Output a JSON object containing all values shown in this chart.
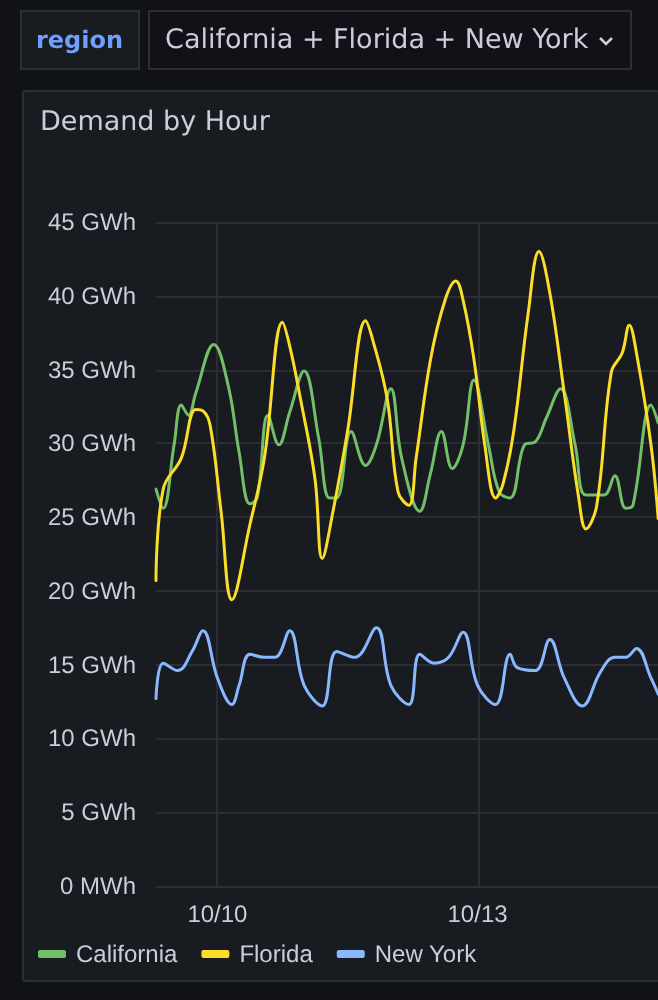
{
  "chart_data": {
    "type": "line",
    "title": "Demand by Hour",
    "annotations": [
      "region",
      "California + Florida + New York"
    ],
    "xlim": [
      "--10-09T07:00",
      "--10-15T02:30"
    ],
    "xticks": [
      {
        "value": "--10-10",
        "label": "10/10"
      },
      {
        "value": "--10-13",
        "label": "10/13"
      }
    ],
    "ylim": [
      0,
      45
    ],
    "yticks": [
      {
        "value": 0,
        "label": "0 MWh"
      },
      {
        "value": 5,
        "label": "5 GWh"
      },
      {
        "value": 10,
        "label": "10 GWh"
      },
      {
        "value": 15,
        "label": "15 GWh"
      },
      {
        "value": 20,
        "label": "20 GWh"
      },
      {
        "value": 25,
        "label": "25 GWh"
      },
      {
        "value": 30,
        "label": "30 GWh"
      },
      {
        "value": 35,
        "label": "35 GWh"
      },
      {
        "value": 40,
        "label": "40 GWh"
      },
      {
        "value": 45,
        "label": "45 GWh"
      }
    ],
    "grid": true,
    "legend": "bottom left",
    "marker": "none",
    "line_style": "solid",
    "series": [
      {
        "name": "California",
        "color": "#73bf69",
        "x": [
          "--10-09T07:00",
          "--10-09T09:00",
          "--10-09T12:00",
          "--10-09T14:00",
          "--10-09T16:00",
          "--10-09T18:00",
          "--10-09T23:00",
          "--10-10T03:00",
          "--10-10T06:00",
          "--10-10T09:00",
          "--10-10T11:00",
          "--10-10T14:00",
          "--10-10T17:00",
          "--10-10T20:00",
          "--10-11T00:00",
          "--10-11T04:00",
          "--10-11T07:00",
          "--10-11T09:00",
          "--10-11T13:00",
          "--10-11T17:00",
          "--10-11T20:00",
          "--10-12T00:00",
          "--10-12T03:00",
          "--10-12T08:00",
          "--10-12T11:00",
          "--10-12T14:00",
          "--10-12T17:00",
          "--10-12T20:00",
          "--10-12T23:00",
          "--10-13T03:00",
          "--10-13T06:00",
          "--10-13T09:00",
          "--10-13T13:00",
          "--10-13T16:00",
          "--10-13T19:00",
          "--10-13T23:00",
          "--10-14T03:00",
          "--10-14T06:00",
          "--10-14T11:00",
          "--10-14T14:00",
          "--10-14T17:00",
          "--10-14T19:00",
          "--10-15T00:00",
          "--10-15T02:00"
        ],
        "values": [
          26.9,
          25.6,
          29.9,
          32.6,
          31.9,
          33.4,
          36.7,
          33.9,
          29.4,
          25.9,
          26.3,
          31.9,
          29.9,
          32.1,
          34.9,
          30.4,
          26.3,
          26.3,
          30.8,
          28.5,
          29.9,
          33.7,
          29.0,
          25.4,
          28.0,
          30.8,
          28.3,
          29.9,
          34.3,
          29.9,
          26.7,
          26.3,
          29.9,
          30.1,
          31.7,
          33.7,
          29.9,
          26.5,
          26.5,
          27.8,
          25.6,
          25.8,
          32.6,
          31.4
        ]
      },
      {
        "name": "Florida",
        "color": "#fade2a",
        "x": [
          "--10-09T07:00",
          "--10-09T09:00",
          "--10-09T14:00",
          "--10-09T18:00",
          "--10-09T20:00",
          "--10-09T22:00",
          "--10-10T01:00",
          "--10-10T04:00",
          "--10-10T09:00",
          "--10-10T13:00",
          "--10-10T18:00",
          "--10-10T20:00",
          "--10-10T23:00",
          "--10-11T03:00",
          "--10-11T05:00",
          "--10-11T08:00",
          "--10-11T12:00",
          "--10-11T17:00",
          "--10-11T19:00",
          "--10-11T23:00",
          "--10-12T02:00",
          "--10-12T05:00",
          "--10-12T07:00",
          "--10-12T11:00",
          "--10-12T15:00",
          "--10-12T18:00",
          "--10-12T20:00",
          "--10-12T23:00",
          "--10-13T02:00",
          "--10-13T05:00",
          "--10-13T07:00",
          "--10-13T10:00",
          "--10-13T14:00",
          "--10-13T17:00",
          "--10-13T20:00",
          "--10-14T00:00",
          "--10-14T04:00",
          "--10-14T06:00",
          "--10-14T09:00",
          "--10-14T13:00",
          "--10-14T16:00",
          "--10-14T18:00",
          "--10-14T20:00",
          "--10-15T00:00",
          "--10-15T02:00"
        ],
        "values": [
          20.7,
          26.9,
          29.0,
          32.3,
          32.2,
          31.2,
          25.4,
          19.4,
          24.5,
          29.0,
          38.2,
          36.6,
          33.0,
          27.6,
          22.2,
          25.4,
          30.8,
          38.3,
          37.0,
          33.0,
          26.7,
          25.8,
          29.0,
          35.7,
          39.7,
          41.0,
          39.7,
          35.7,
          29.9,
          26.3,
          27.2,
          30.8,
          38.8,
          43.0,
          40.2,
          33.4,
          26.3,
          24.2,
          25.8,
          34.8,
          36.1,
          38.0,
          36.1,
          29.9,
          24.9
        ]
      },
      {
        "name": "New York",
        "color": "#8ab8ff",
        "x": [
          "--10-09T07:00",
          "--10-09T09:00",
          "--10-09T13:00",
          "--10-09T17:00",
          "--10-09T20:00",
          "--10-10T00:00",
          "--10-10T04:00",
          "--10-10T06:00",
          "--10-10T09:00",
          "--10-10T13:00",
          "--10-10T16:00",
          "--10-10T20:00",
          "--10-11T00:00",
          "--10-11T05:00",
          "--10-11T09:00",
          "--10-11T14:00",
          "--10-11T20:00",
          "--10-12T00:00",
          "--10-12T05:00",
          "--10-12T08:00",
          "--10-12T12:00",
          "--10-12T16:00",
          "--10-12T20:00",
          "--10-13T00:00",
          "--10-13T05:00",
          "--10-13T09:00",
          "--10-13T11:00",
          "--10-13T16:00",
          "--10-13T20:00",
          "--10-14T00:00",
          "--10-14T05:00",
          "--10-14T10:00",
          "--10-14T14:00",
          "--10-14T17:00",
          "--10-14T20:00",
          "--10-15T00:00",
          "--10-15T02:00"
        ],
        "values": [
          12.7,
          15.1,
          14.6,
          15.9,
          17.3,
          14.1,
          12.3,
          13.6,
          15.7,
          15.5,
          15.5,
          17.3,
          13.6,
          12.2,
          15.9,
          15.5,
          17.5,
          13.6,
          12.3,
          15.7,
          15.1,
          15.5,
          17.2,
          13.6,
          12.3,
          15.7,
          14.8,
          14.6,
          16.7,
          14.1,
          12.2,
          14.5,
          15.5,
          15.5,
          16.1,
          14.1,
          13.0
        ]
      }
    ]
  }
}
